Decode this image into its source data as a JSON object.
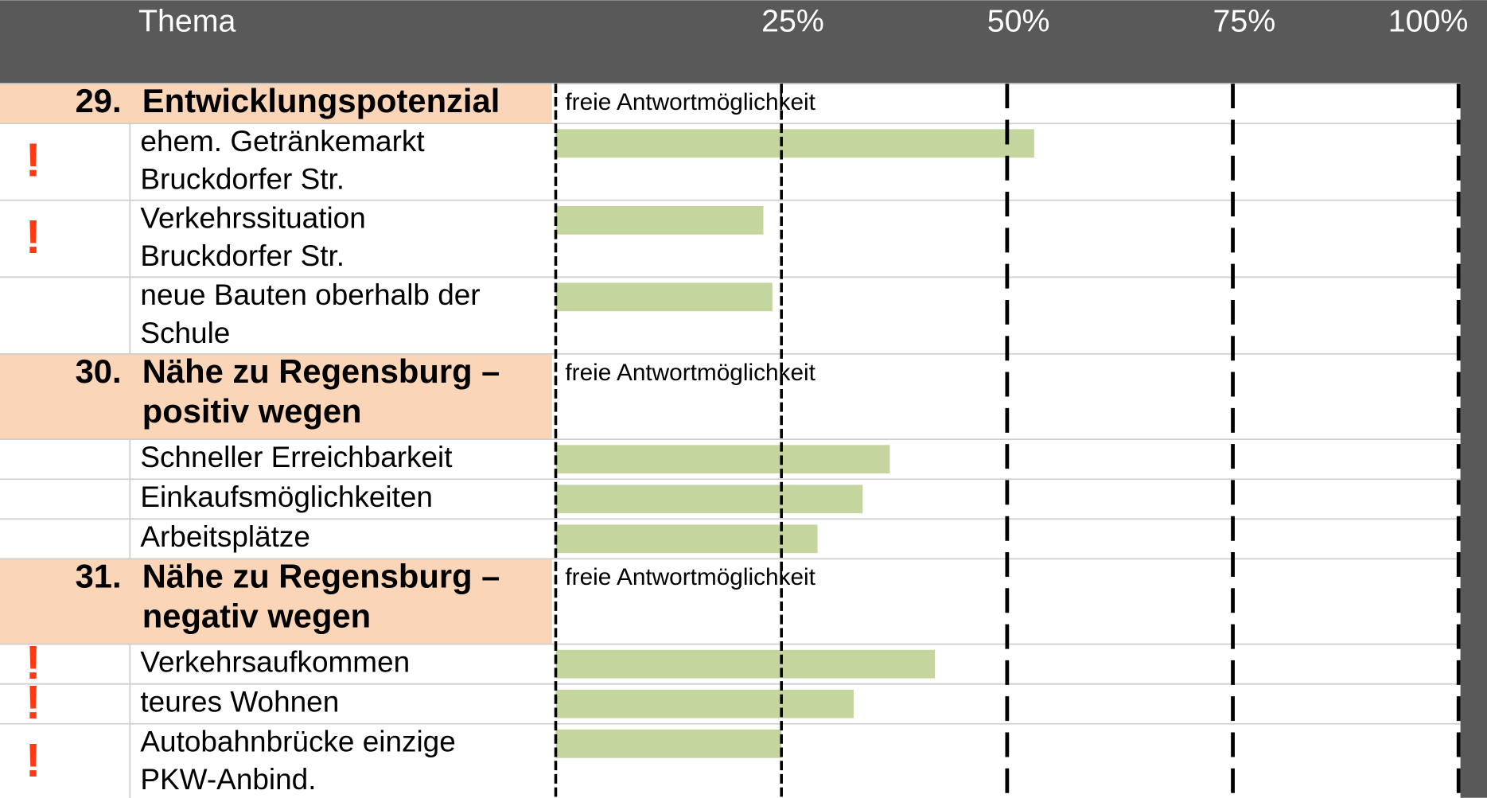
{
  "chart_data": {
    "type": "bar",
    "header": "Thema",
    "xlim": [
      0,
      100
    ],
    "xticks": [
      {
        "value": 25,
        "label": "25%"
      },
      {
        "value": 50,
        "label": "50%"
      },
      {
        "value": 75,
        "label": "75%"
      },
      {
        "value": 100,
        "label": "100%"
      }
    ],
    "color": "#c4d69e",
    "sections": [
      {
        "number": "29.",
        "title": [
          "Entwicklungspotenzial"
        ],
        "note": "freie Antwortmöglichkeit",
        "items": [
          {
            "label": [
              "ehem. Getränkemarkt",
              "Bruckdorfer Str."
            ],
            "value": 53,
            "flag": "!"
          },
          {
            "label": [
              "Verkehrssituation",
              "Bruckdorfer Str."
            ],
            "value": 23,
            "flag": "!"
          },
          {
            "label": [
              "neue Bauten oberhalb der",
              "Schule"
            ],
            "value": 24
          }
        ]
      },
      {
        "number": "30.",
        "title": [
          "Nähe zu Regensburg –",
          "positiv wegen"
        ],
        "note": "freie Antwortmöglichkeit",
        "items": [
          {
            "label": [
              "Schneller Erreichbarkeit"
            ],
            "value": 37
          },
          {
            "label": [
              "Einkaufsmöglichkeiten"
            ],
            "value": 34
          },
          {
            "label": [
              "Arbeitsplätze"
            ],
            "value": 29
          }
        ]
      },
      {
        "number": "31.",
        "title": [
          "Nähe zu Regensburg –",
          "negativ wegen"
        ],
        "note": "freie Antwortmöglichkeit",
        "items": [
          {
            "label": [
              "Verkehrsaufkommen"
            ],
            "value": 42,
            "flag": "!"
          },
          {
            "label": [
              "teures Wohnen"
            ],
            "value": 33,
            "flag": "!"
          },
          {
            "label": [
              "Autobahnbrücke einzige",
              "PKW-Anbind."
            ],
            "value": 25,
            "flag": "!"
          }
        ]
      }
    ]
  }
}
